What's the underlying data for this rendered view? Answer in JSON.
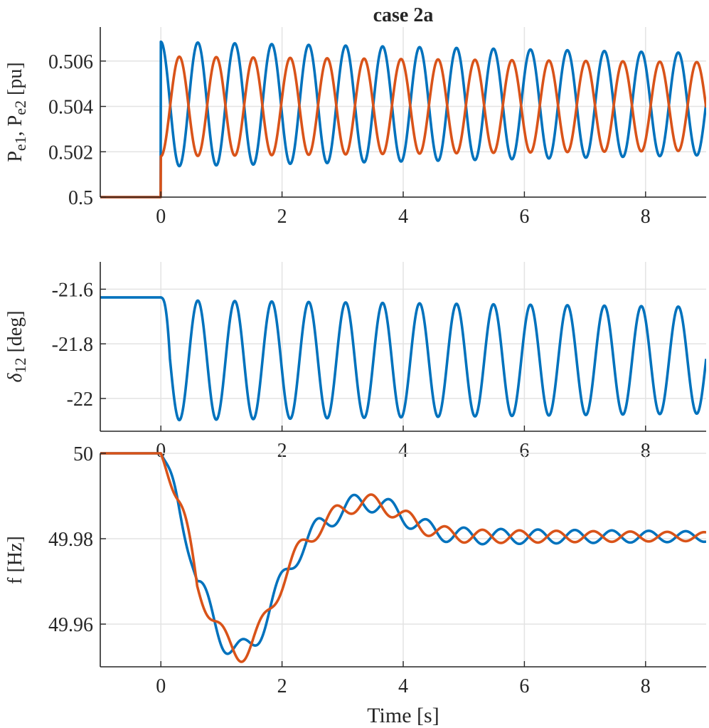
{
  "title": "case 2a",
  "colors": {
    "blue": "#0072BD",
    "orange": "#D95319",
    "grid": "#e3e3e3",
    "axis": "#262626"
  },
  "chart_data": [
    {
      "type": "line",
      "ylabel": {
        "base1": "P",
        "sub1": "e1",
        "sep": ", ",
        "base2": "P",
        "sub2": "e2",
        "unit": " [pu]"
      },
      "xlabel": "",
      "xlim": [
        -1,
        9
      ],
      "ylim": [
        0.5,
        0.5075
      ],
      "xticks": [
        0,
        2,
        4,
        6,
        8
      ],
      "yticks": [
        0.5,
        0.502,
        0.504,
        0.506
      ],
      "ytick_labels": [
        "0.5",
        "0.502",
        "0.504",
        "0.506"
      ],
      "grid": true,
      "series": [
        {
          "color": "blue",
          "pre_value": 0.5,
          "step_to": 0.5022,
          "mean": 0.5041,
          "amp_start": 0.00275,
          "amp_end": 0.00225,
          "period_s": 0.61,
          "phase": "cos",
          "x_end": 9
        },
        {
          "color": "orange",
          "pre_value": 0.5,
          "step_to": 0.5018,
          "mean": 0.504,
          "amp_start": 0.0022,
          "amp_end": 0.00195,
          "period_s": 0.61,
          "phase": "-cos",
          "x_end": 9
        }
      ]
    },
    {
      "type": "line",
      "ylabel": {
        "base1": "δ",
        "sub1": "12",
        "unit": " [deg]"
      },
      "xlabel": "",
      "xlim": [
        -1,
        9
      ],
      "ylim": [
        -22.12,
        -21.5
      ],
      "xticks": [
        0,
        2,
        4,
        6,
        8
      ],
      "yticks": [
        -22,
        -21.8,
        -21.6
      ],
      "ytick_labels": [
        "-22",
        "-21.8",
        "-21.6"
      ],
      "grid": true,
      "series": [
        {
          "color": "blue",
          "pre_value": -21.63,
          "mean": -21.86,
          "amp_start": 0.22,
          "amp_end": 0.195,
          "period_s": 0.61,
          "x_end": 9
        }
      ]
    },
    {
      "type": "line",
      "ylabel": {
        "base1": "f",
        "unit": " [Hz]"
      },
      "xlabel": "Time [s]",
      "xlim": [
        -1,
        9
      ],
      "ylim": [
        49.95,
        50.0
      ],
      "xticks": [
        0,
        2,
        4,
        6,
        8
      ],
      "yticks": [
        49.96,
        49.98,
        50
      ],
      "ytick_labels": [
        "49.96",
        "49.98",
        "50"
      ],
      "grid": true,
      "series": [
        {
          "color": "blue",
          "pre_value": 50,
          "x_end": 9
        },
        {
          "color": "orange",
          "pre_value": 50,
          "x_end": 9
        }
      ]
    }
  ]
}
